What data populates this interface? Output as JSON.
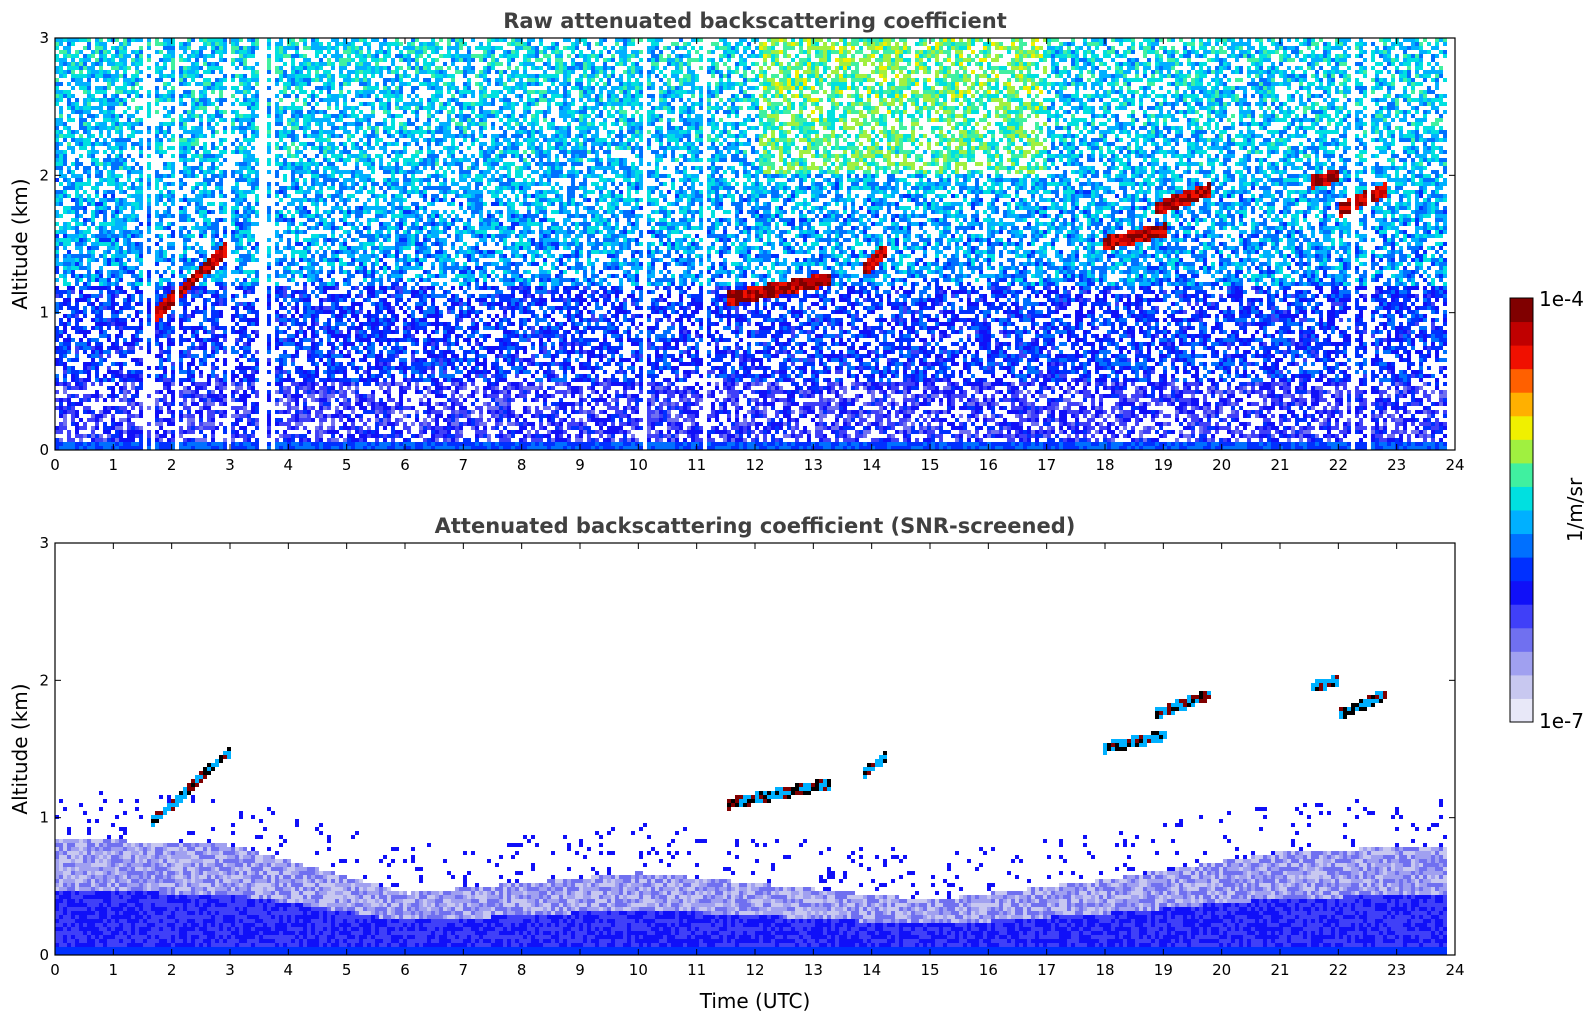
{
  "chart_data": [
    {
      "type": "heatmap",
      "title": "Raw attenuated backscattering coefficient",
      "xlabel": "",
      "ylabel": "Altitude (km)",
      "xlim": [
        0,
        24
      ],
      "ylim": [
        0,
        3
      ],
      "xticks": [
        0,
        1,
        2,
        3,
        4,
        5,
        6,
        7,
        8,
        9,
        10,
        11,
        12,
        13,
        14,
        15,
        16,
        17,
        18,
        19,
        20,
        21,
        22,
        23,
        24
      ],
      "yticks": [
        0,
        1,
        2,
        3
      ],
      "colorbar": {
        "min_label": "1e-7",
        "max_label": "1e-4",
        "label": "1/m/sr",
        "scale": "log"
      },
      "features": {
        "cloud_layers": [
          {
            "t_start": 1.6,
            "t_end": 3.0,
            "alt_start_km": 0.95,
            "alt_end_km": 1.5
          },
          {
            "t_start": 11.5,
            "t_end": 13.3,
            "alt_start_km": 1.1,
            "alt_end_km": 1.25
          },
          {
            "t_start": 13.8,
            "t_end": 14.2,
            "alt_start_km": 1.3,
            "alt_end_km": 1.45
          },
          {
            "t_start": 17.9,
            "t_end": 19.0,
            "alt_start_km": 1.5,
            "alt_end_km": 1.6
          },
          {
            "t_start": 18.8,
            "t_end": 19.8,
            "alt_start_km": 1.75,
            "alt_end_km": 1.9
          },
          {
            "t_start": 21.5,
            "t_end": 22.0,
            "alt_start_km": 1.95,
            "alt_end_km": 2.0
          },
          {
            "t_start": 22.0,
            "t_end": 22.8,
            "alt_start_km": 1.75,
            "alt_end_km": 1.9
          }
        ]
      }
    },
    {
      "type": "heatmap",
      "title": "Attenuated backscattering coefficient (SNR-screened)",
      "xlabel": "Time (UTC)",
      "ylabel": "Altitude (km)",
      "xlim": [
        0,
        24
      ],
      "ylim": [
        0,
        3
      ],
      "xticks": [
        0,
        1,
        2,
        3,
        4,
        5,
        6,
        7,
        8,
        9,
        10,
        11,
        12,
        13,
        14,
        15,
        16,
        17,
        18,
        19,
        20,
        21,
        22,
        23,
        24
      ],
      "yticks": [
        0,
        1,
        2,
        3
      ],
      "colorbar": {
        "min_label": "1e-7",
        "max_label": "1e-4",
        "label": "1/m/sr",
        "scale": "log"
      },
      "features": {
        "boundary_layer_top_km": [
          {
            "t": 0,
            "alt_km": 0.85
          },
          {
            "t": 3,
            "alt_km": 0.8
          },
          {
            "t": 6,
            "alt_km": 0.45
          },
          {
            "t": 10,
            "alt_km": 0.6
          },
          {
            "t": 15,
            "alt_km": 0.4
          },
          {
            "t": 18,
            "alt_km": 0.55
          },
          {
            "t": 21,
            "alt_km": 0.75
          },
          {
            "t": 24,
            "alt_km": 0.8
          }
        ]
      }
    }
  ],
  "colorbar": {
    "max_label": "1e-4",
    "min_label": "1e-7",
    "label": "1/m/sr",
    "colormap": [
      "#e8e8f8",
      "#c8c8f0",
      "#a0a0f0",
      "#7070f0",
      "#4040f8",
      "#1010f8",
      "#0030ff",
      "#0070ff",
      "#00b0ff",
      "#00e0e0",
      "#40f0a0",
      "#a0f040",
      "#f0f000",
      "#ffb000",
      "#ff6000",
      "#f01000",
      "#c00000",
      "#800000"
    ]
  }
}
